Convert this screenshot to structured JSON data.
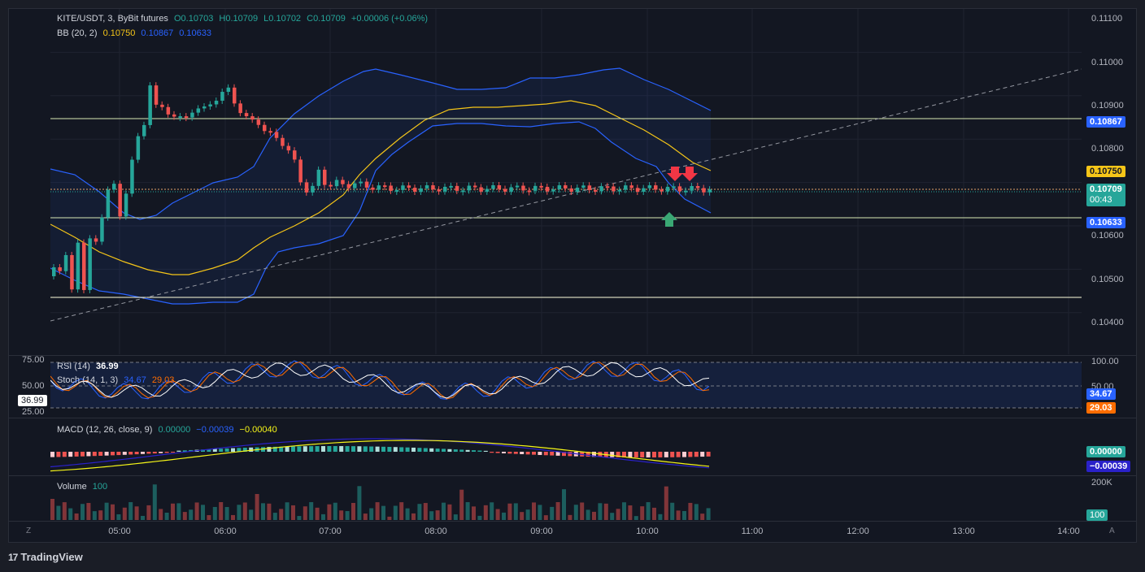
{
  "header": {
    "symbol": "KITE/USDT, 3, ByBit futures",
    "o": "O0.10703",
    "h": "H0.10709",
    "l": "L0.10702",
    "c": "C0.10709",
    "change": "+0.00006 (+0.06%)",
    "bb_label": "BB (20, 2)",
    "bb_mid": "0.10750",
    "bb_upper": "0.10867",
    "bb_lower": "0.10633"
  },
  "price_axis": {
    "ticks": [
      "0.11100",
      "0.11000",
      "0.10900",
      "0.10800",
      "0.10600",
      "0.10500",
      "0.10400"
    ],
    "tags": {
      "upper": "0.10867",
      "mid": "0.10750",
      "last": "0.10709",
      "countdown": "00:43",
      "lower": "0.10633"
    }
  },
  "rsi": {
    "label": "RSI (14)",
    "value": "36.99",
    "left_ticks": [
      "75.00",
      "50.00",
      "25.00"
    ],
    "cursor_value": "36.99"
  },
  "stoch": {
    "label": "Stoch (14, 1, 3)",
    "k": "34.67",
    "d": "29.03",
    "ticks": [
      "100.00",
      "50.00"
    ],
    "tag_k": "34.67",
    "tag_d": "29.03"
  },
  "macd": {
    "label": "MACD (12, 26, close, 9)",
    "hist": "0.00000",
    "macd": "−0.00039",
    "signal": "−0.00040",
    "tag_hist": "0.00000",
    "tag_macd": "−0.00039"
  },
  "volume": {
    "label": "Volume",
    "value": "100",
    "axis_tick": "200K",
    "tag": "100"
  },
  "time_axis": [
    "05:00",
    "06:00",
    "07:00",
    "08:00",
    "09:00",
    "10:00",
    "11:00",
    "12:00",
    "13:00",
    "14:00"
  ],
  "corners": {
    "left": "Z",
    "right": "A"
  },
  "brand": {
    "logo": "17",
    "name": "TradingView"
  },
  "colors": {
    "up": "#26a69a",
    "down": "#ef5350",
    "bb_band": "#2962ff",
    "bb_mid": "#f5c518",
    "bg": "#131722"
  },
  "chart_data": {
    "type": "candlestick",
    "price_levels": [
      0.10867,
      0.10633,
      0.10462
    ],
    "last_close": 0.10709
  }
}
